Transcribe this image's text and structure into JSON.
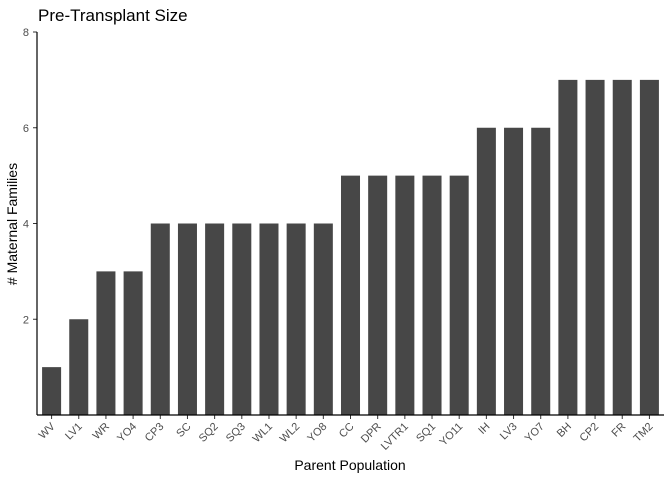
{
  "chart_data": {
    "type": "bar",
    "title": "Pre-Transplant Size",
    "xlabel": "Parent Population",
    "ylabel": "# Maternal Families",
    "categories": [
      "WV",
      "LV1",
      "WR",
      "YO4",
      "CP3",
      "SC",
      "SQ2",
      "SQ3",
      "WL1",
      "WL2",
      "YO8",
      "CC",
      "DPR",
      "LVTR1",
      "SQ1",
      "YO11",
      "IH",
      "LV3",
      "YO7",
      "BH",
      "CP2",
      "FR",
      "TM2"
    ],
    "values": [
      1,
      2,
      3,
      3,
      4,
      4,
      4,
      4,
      4,
      4,
      4,
      5,
      5,
      5,
      5,
      5,
      6,
      6,
      6,
      7,
      7,
      7,
      7
    ],
    "ylim": [
      0,
      8
    ],
    "yticks": [
      2,
      4,
      6,
      8
    ],
    "grid": false,
    "bar_color": "#474747"
  }
}
